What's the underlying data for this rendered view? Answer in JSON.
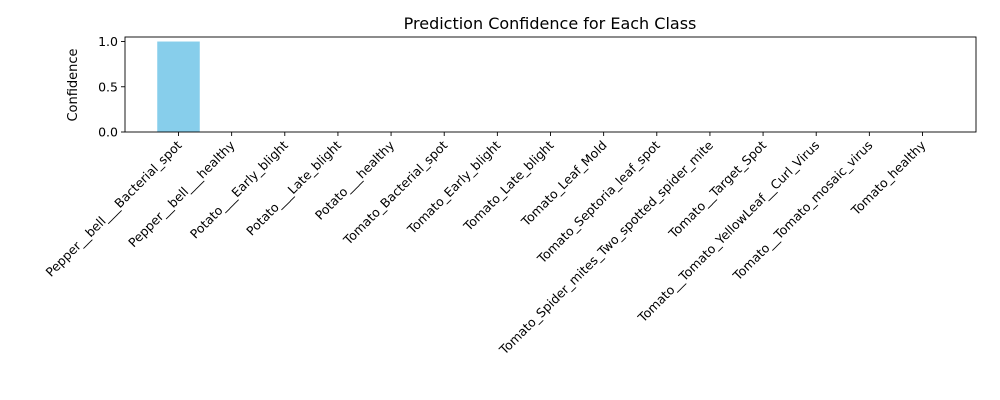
{
  "chart_data": {
    "type": "bar",
    "title": "Prediction Confidence for Each Class",
    "xlabel": "",
    "ylabel": "Confidence",
    "ylim": [
      0,
      1.05
    ],
    "yticks": [
      0.0,
      0.5,
      1.0
    ],
    "ytick_labels": [
      "0.0",
      "0.5",
      "1.0"
    ],
    "grid": false,
    "bar_color": "#87CEEB",
    "categories": [
      "Pepper__bell___Bacterial_spot",
      "Pepper__bell___healthy",
      "Potato___Early_blight",
      "Potato___Late_blight",
      "Potato___healthy",
      "Tomato_Bacterial_spot",
      "Tomato_Early_blight",
      "Tomato_Late_blight",
      "Tomato_Leaf_Mold",
      "Tomato_Septoria_leaf_spot",
      "Tomato_Spider_mites_Two_spotted_spider_mite",
      "Tomato__Target_Spot",
      "Tomato__Tomato_YellowLeaf__Curl_Virus",
      "Tomato__Tomato_mosaic_virus",
      "Tomato_healthy"
    ],
    "values": [
      1.0,
      0,
      0,
      0,
      0,
      0,
      0,
      0,
      0,
      0,
      0,
      0,
      0,
      0,
      0
    ]
  }
}
